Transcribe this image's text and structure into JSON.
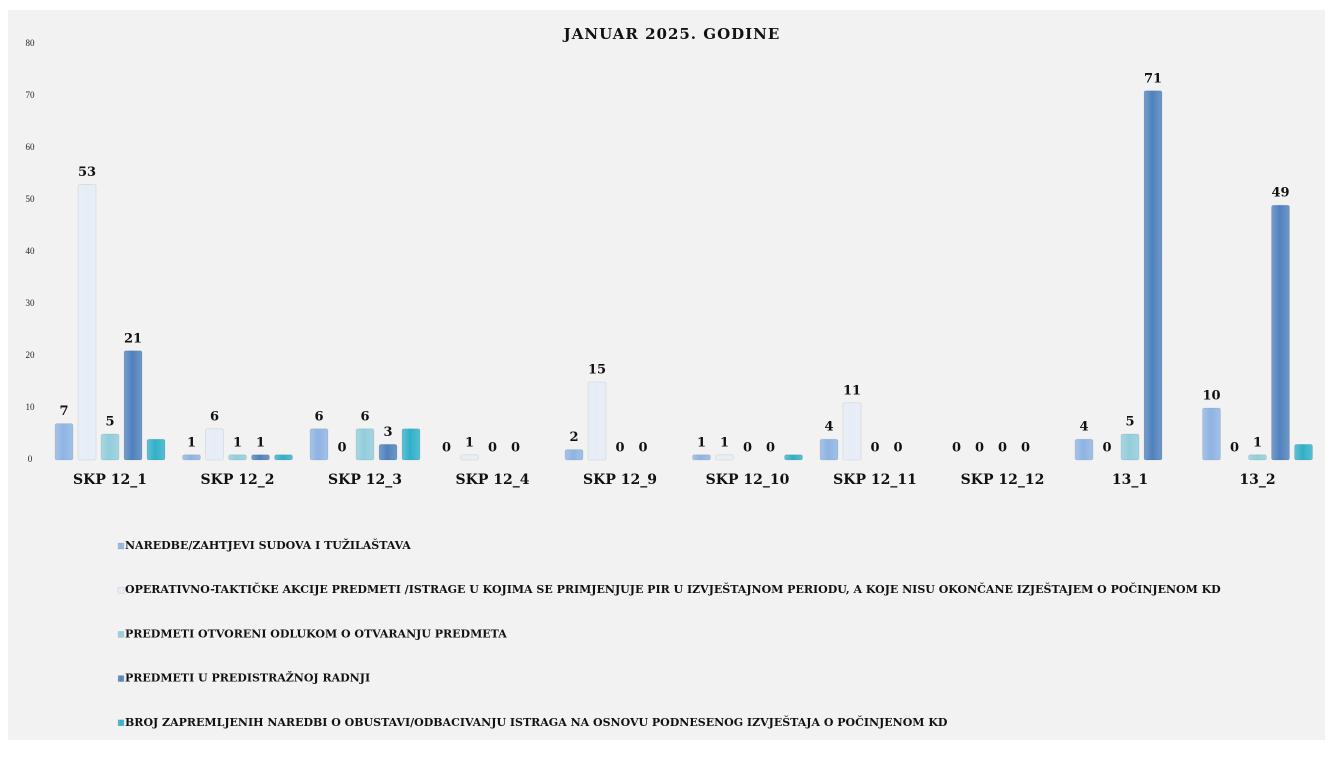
{
  "chart_data": {
    "type": "bar",
    "title": "JANUAR 2025. GODINE",
    "categories": [
      "SKP  12_1",
      "SKP  12_2",
      "SKP  12_3",
      "SKP  12_4",
      "SKP  12_9",
      "SKP  12_10",
      "SKP  12_11",
      "SKP 12_12",
      "13_1",
      "13_2"
    ],
    "series": [
      {
        "name": "NAREDBE/ZAHTJEVI SUDOVA I TUŽILAŠTAVA",
        "color": "#8eb4e3",
        "data_labels": true,
        "values": [
          7,
          1,
          6,
          0,
          2,
          1,
          4,
          0,
          4,
          10
        ]
      },
      {
        "name": "OPERATIVNO-TAKTIČKE AKCIJE PREDMETI /ISTRAGE U KOJIMA SE PRIMJENJUJE PIR U IZVJEŠTAJNOM PERIODU, A KOJE NISU OKONČANE IZJEŠTAJEM O POČINJENOM KD",
        "color": "#e6edf7",
        "data_labels": true,
        "values": [
          53,
          6,
          0,
          1,
          15,
          1,
          11,
          0,
          0,
          0
        ]
      },
      {
        "name": "PREDMETI OTVORENI ODLUKOM O OTVARANJU PREDMETA",
        "color": "#92cddc",
        "data_labels": true,
        "values": [
          5,
          1,
          6,
          0,
          0,
          0,
          0,
          0,
          5,
          1
        ]
      },
      {
        "name": "PREDMETI U PREDISTRAŽNOJ RADNJI",
        "color": "#4f81bd",
        "data_labels": true,
        "values": [
          21,
          1,
          3,
          0,
          0,
          0,
          0,
          0,
          71,
          49
        ]
      },
      {
        "name": "BROJ ZAPREMLJENIH NAREDBI O OBUSTAVI/ODBACIVANJU ISTRAGA NA OSNOVU PODNESENOG IZVJEŠTAJA O POČINJENOM KD",
        "color": "#31b0c9",
        "data_labels": false,
        "values": [
          4,
          1,
          6,
          0,
          0,
          1,
          0,
          0,
          0,
          3
        ]
      }
    ],
    "ylim": [
      0,
      80
    ],
    "yticks": [
      0,
      10,
      20,
      30,
      40,
      50,
      60,
      70,
      80
    ],
    "grid": false
  }
}
